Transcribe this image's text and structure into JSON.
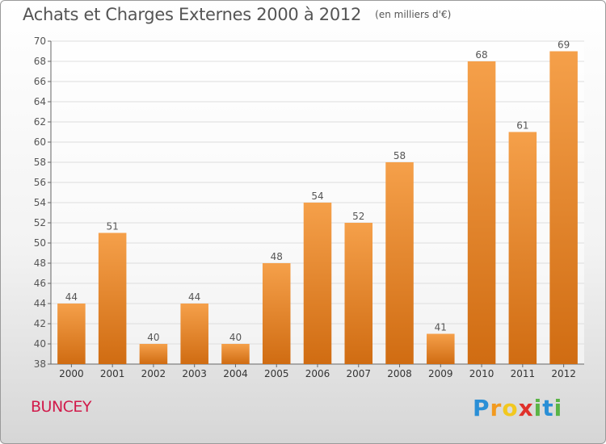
{
  "title": "Achats et Charges Externes 2000 à 2012",
  "subtitle": "(en milliers d'€)",
  "commune": "BUNCEY",
  "logo": {
    "letters": [
      {
        "char": "P",
        "color": "#2a8fd6"
      },
      {
        "char": "r",
        "color": "#f29a1f"
      },
      {
        "char": "o",
        "color": "#f2c81f"
      },
      {
        "char": "x",
        "color": "#e0312b"
      },
      {
        "char": "i",
        "color": "#5ab446"
      },
      {
        "char": "t",
        "color": "#2a8fd6"
      },
      {
        "char": "i",
        "color": "#5ab446"
      }
    ]
  },
  "colors": {
    "bar_top": "#f5a04a",
    "bar_bottom": "#d06c12",
    "axis": "#666666",
    "grid": "#dddddd",
    "text": "#555555"
  },
  "chart_data": {
    "type": "bar",
    "title": "Achats et Charges Externes 2000 à 2012",
    "subtitle": "(en milliers d'€)",
    "categories": [
      "2000",
      "2001",
      "2002",
      "2003",
      "2004",
      "2005",
      "2006",
      "2007",
      "2008",
      "2009",
      "2010",
      "2011",
      "2012"
    ],
    "values": [
      44,
      51,
      40,
      44,
      40,
      48,
      54,
      52,
      58,
      41,
      68,
      61,
      69
    ],
    "ylim": [
      38,
      70
    ],
    "yticks": [
      38,
      40,
      42,
      44,
      46,
      48,
      50,
      52,
      54,
      56,
      58,
      60,
      62,
      64,
      66,
      68,
      70
    ],
    "xlabel": "",
    "ylabel": "",
    "grid": true,
    "data_labels": true
  }
}
